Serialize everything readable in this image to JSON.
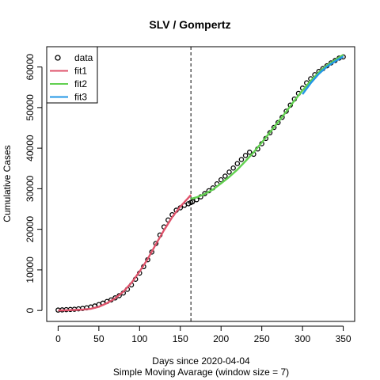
{
  "chart_data": {
    "type": "line",
    "title": "SLV / Gompertz",
    "xlabel": "Days since 2020-04-04",
    "xlabel_sub": "Simple Moving Avarage (window size = 7)",
    "ylabel": "Cumulative Cases",
    "xlim": [
      -14,
      364
    ],
    "ylim": [
      -2700,
      65000
    ],
    "x_ticks": [
      0,
      50,
      100,
      150,
      200,
      250,
      300,
      350
    ],
    "y_ticks": [
      0,
      10000,
      20000,
      30000,
      40000,
      50000,
      60000
    ],
    "vline_x": 163,
    "grid": false,
    "legend_position": "top-left",
    "legend": [
      {
        "label": "data",
        "kind": "point",
        "color": "#000000"
      },
      {
        "label": "fit1",
        "kind": "line",
        "color": "#DF536B"
      },
      {
        "label": "fit2",
        "kind": "line",
        "color": "#61D04F"
      },
      {
        "label": "fit3",
        "kind": "line",
        "color": "#2297E6"
      }
    ],
    "series": [
      {
        "name": "data",
        "kind": "points",
        "color": "#000000",
        "x": [
          0,
          5,
          10,
          15,
          20,
          25,
          30,
          35,
          40,
          45,
          50,
          55,
          60,
          65,
          70,
          75,
          80,
          85,
          90,
          95,
          100,
          105,
          110,
          115,
          120,
          125,
          130,
          135,
          140,
          145,
          150,
          155,
          160,
          163,
          165,
          170,
          175,
          180,
          185,
          190,
          195,
          200,
          205,
          210,
          215,
          220,
          225,
          230,
          235,
          240,
          245,
          250,
          255,
          260,
          265,
          270,
          275,
          280,
          285,
          290,
          295,
          300,
          305,
          310,
          315,
          320,
          325,
          330,
          335,
          340,
          345,
          350
        ],
        "y": [
          100,
          150,
          200,
          250,
          300,
          400,
          500,
          650,
          850,
          1100,
          1450,
          1800,
          2200,
          2600,
          3100,
          3650,
          4300,
          5200,
          6300,
          7700,
          9200,
          10800,
          12500,
          14400,
          16500,
          18600,
          20600,
          22300,
          23600,
          24700,
          25300,
          25900,
          26300,
          26600,
          26800,
          27300,
          28000,
          28800,
          29500,
          30200,
          31200,
          32200,
          33100,
          34100,
          35100,
          36200,
          37200,
          38200,
          39000,
          38500,
          39800,
          41100,
          42400,
          43800,
          45100,
          46300,
          47600,
          49100,
          50600,
          52100,
          53500,
          54800,
          56100,
          57100,
          58100,
          58900,
          59600,
          60300,
          61000,
          61600,
          62200,
          62500
        ]
      },
      {
        "name": "fit1",
        "kind": "line",
        "color": "#DF536B",
        "x": [
          0,
          10,
          20,
          30,
          40,
          50,
          60,
          70,
          80,
          90,
          100,
          110,
          120,
          130,
          140,
          150,
          160,
          163
        ],
        "y": [
          0,
          60,
          120,
          200,
          400,
          900,
          1800,
          3000,
          4600,
          6800,
          9600,
          12700,
          16300,
          19800,
          23000,
          25600,
          27800,
          28500
        ]
      },
      {
        "name": "fit2",
        "kind": "line",
        "color": "#61D04F",
        "x": [
          163,
          170,
          180,
          190,
          200,
          210,
          220,
          230,
          240,
          250,
          260,
          270,
          280,
          290,
          300,
          310,
          320,
          330,
          340,
          350
        ],
        "y": [
          27500,
          27900,
          28700,
          29800,
          31300,
          32900,
          34700,
          36800,
          39000,
          41400,
          43900,
          46400,
          49000,
          51700,
          54200,
          56600,
          58700,
          60400,
          61700,
          63000
        ]
      },
      {
        "name": "fit3",
        "kind": "line",
        "color": "#2297E6",
        "x": [
          300,
          310,
          320,
          330,
          340,
          350
        ],
        "y": [
          53300,
          56000,
          58300,
          60100,
          61400,
          62600
        ]
      }
    ]
  }
}
